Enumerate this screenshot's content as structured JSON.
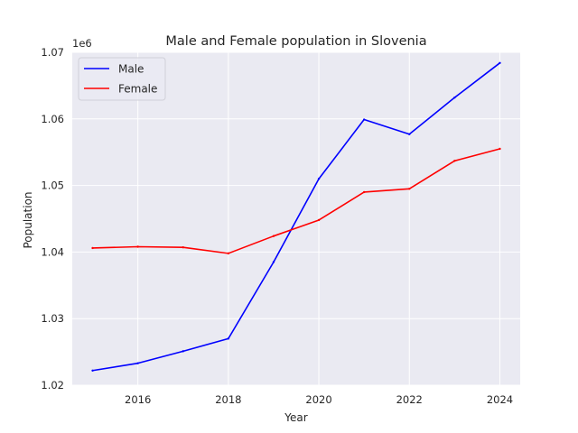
{
  "chart_data": {
    "type": "line",
    "title": "Male and Female population in Slovenia",
    "xlabel": "Year",
    "ylabel": "Population",
    "y_offset_label": "1e6",
    "x": [
      2015,
      2016,
      2017,
      2018,
      2019,
      2020,
      2021,
      2022,
      2023,
      2024
    ],
    "xlim": [
      2014.55,
      2024.45
    ],
    "ylim": [
      1.02,
      1.07
    ],
    "x_ticks": [
      2016,
      2018,
      2020,
      2022,
      2024
    ],
    "x_tick_labels": [
      "2016",
      "2018",
      "2020",
      "2022",
      "2024"
    ],
    "y_ticks": [
      1.02,
      1.03,
      1.04,
      1.05,
      1.06,
      1.07
    ],
    "y_tick_labels": [
      "1.02",
      "1.03",
      "1.04",
      "1.05",
      "1.06",
      "1.07"
    ],
    "grid": true,
    "legend_position": "top-left",
    "background_color": "#eaeaf2",
    "series": [
      {
        "name": "Male",
        "color": "#0000ff",
        "values": [
          1.0222,
          1.0233,
          1.0251,
          1.027,
          1.0385,
          1.051,
          1.0599,
          1.0577,
          1.0632,
          1.0684
        ]
      },
      {
        "name": "Female",
        "color": "#ff0000",
        "values": [
          1.0406,
          1.0408,
          1.0407,
          1.0398,
          1.0424,
          1.0448,
          1.049,
          1.0495,
          1.0537,
          1.0555
        ]
      }
    ]
  }
}
